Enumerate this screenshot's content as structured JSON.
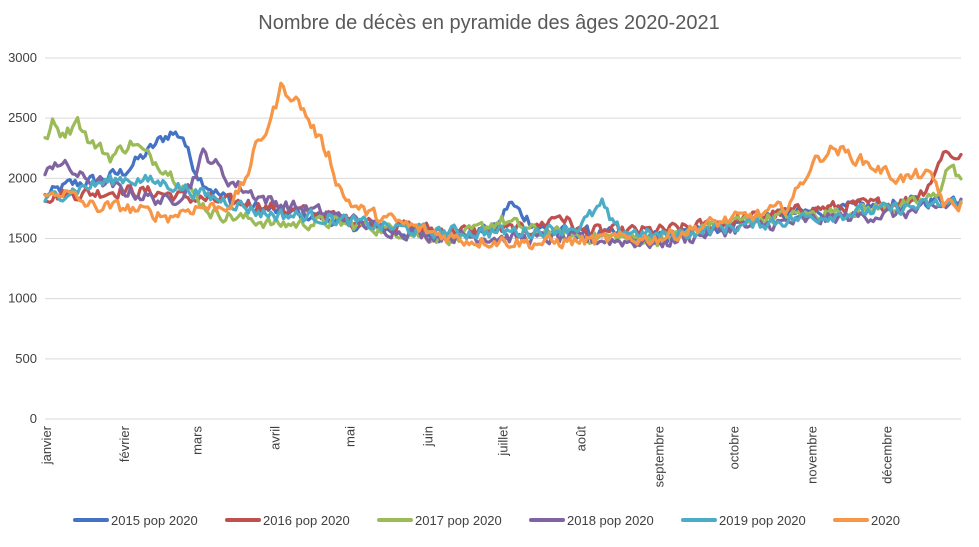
{
  "chart_data": {
    "type": "line",
    "title": "Nombre de décès en pyramide des âges 2020-2021",
    "xlabel": "",
    "ylabel": "",
    "ylim": [
      0,
      3000
    ],
    "yticks": [
      "0",
      "500",
      "1000",
      "1500",
      "2000",
      "2500",
      "3000"
    ],
    "ytick_values": [
      0,
      500,
      1000,
      1500,
      2000,
      2500,
      3000
    ],
    "days_total": 366,
    "months": [
      {
        "label": "janvier",
        "day": 0
      },
      {
        "label": "février",
        "day": 31
      },
      {
        "label": "mars",
        "day": 60
      },
      {
        "label": "avril",
        "day": 91
      },
      {
        "label": "mai",
        "day": 121
      },
      {
        "label": "juin",
        "day": 152
      },
      {
        "label": "juillet",
        "day": 182
      },
      {
        "label": "août",
        "day": 213
      },
      {
        "label": "septembre",
        "day": 244
      },
      {
        "label": "octobre",
        "day": 274
      },
      {
        "label": "novembre",
        "day": 305
      },
      {
        "label": "décembre",
        "day": 335
      }
    ],
    "legend_position": "bottom",
    "series": [
      {
        "name": "2015 pop 2020",
        "color": "#4472c4",
        "keypoints": [
          [
            0,
            1850
          ],
          [
            10,
            1950
          ],
          [
            20,
            1980
          ],
          [
            31,
            2050
          ],
          [
            40,
            2200
          ],
          [
            45,
            2300
          ],
          [
            50,
            2380
          ],
          [
            55,
            2350
          ],
          [
            58,
            2150
          ],
          [
            62,
            2000
          ],
          [
            70,
            1850
          ],
          [
            80,
            1780
          ],
          [
            91,
            1730
          ],
          [
            100,
            1700
          ],
          [
            110,
            1680
          ],
          [
            121,
            1620
          ],
          [
            135,
            1580
          ],
          [
            152,
            1530
          ],
          [
            160,
            1520
          ],
          [
            170,
            1550
          ],
          [
            180,
            1580
          ],
          [
            185,
            1800
          ],
          [
            190,
            1700
          ],
          [
            200,
            1560
          ],
          [
            213,
            1550
          ],
          [
            225,
            1530
          ],
          [
            244,
            1500
          ],
          [
            260,
            1560
          ],
          [
            274,
            1620
          ],
          [
            285,
            1670
          ],
          [
            295,
            1700
          ],
          [
            305,
            1720
          ],
          [
            315,
            1740
          ],
          [
            325,
            1760
          ],
          [
            335,
            1780
          ],
          [
            345,
            1800
          ],
          [
            355,
            1820
          ],
          [
            365,
            1830
          ]
        ]
      },
      {
        "name": "2016 pop 2020",
        "color": "#c0504d",
        "keypoints": [
          [
            0,
            1850
          ],
          [
            10,
            1870
          ],
          [
            20,
            1880
          ],
          [
            31,
            1900
          ],
          [
            45,
            1880
          ],
          [
            60,
            1830
          ],
          [
            75,
            1800
          ],
          [
            91,
            1760
          ],
          [
            110,
            1700
          ],
          [
            121,
            1660
          ],
          [
            135,
            1620
          ],
          [
            152,
            1580
          ],
          [
            170,
            1560
          ],
          [
            182,
            1570
          ],
          [
            195,
            1580
          ],
          [
            205,
            1700
          ],
          [
            213,
            1560
          ],
          [
            230,
            1560
          ],
          [
            244,
            1560
          ],
          [
            260,
            1600
          ],
          [
            274,
            1650
          ],
          [
            290,
            1700
          ],
          [
            305,
            1740
          ],
          [
            320,
            1770
          ],
          [
            335,
            1790
          ],
          [
            345,
            1820
          ],
          [
            350,
            1900
          ],
          [
            355,
            2050
          ],
          [
            358,
            2250
          ],
          [
            361,
            2180
          ],
          [
            365,
            2200
          ]
        ]
      },
      {
        "name": "2017 pop 2020",
        "color": "#9bbb59",
        "keypoints": [
          [
            0,
            2300
          ],
          [
            3,
            2450
          ],
          [
            6,
            2380
          ],
          [
            10,
            2400
          ],
          [
            12,
            2520
          ],
          [
            15,
            2420
          ],
          [
            18,
            2300
          ],
          [
            22,
            2250
          ],
          [
            26,
            2180
          ],
          [
            31,
            2250
          ],
          [
            35,
            2300
          ],
          [
            40,
            2200
          ],
          [
            48,
            2080
          ],
          [
            55,
            1950
          ],
          [
            60,
            1850
          ],
          [
            66,
            1720
          ],
          [
            75,
            1680
          ],
          [
            85,
            1650
          ],
          [
            91,
            1620
          ],
          [
            100,
            1620
          ],
          [
            110,
            1640
          ],
          [
            121,
            1620
          ],
          [
            135,
            1580
          ],
          [
            152,
            1520
          ],
          [
            165,
            1500
          ],
          [
            175,
            1600
          ],
          [
            182,
            1650
          ],
          [
            195,
            1560
          ],
          [
            213,
            1520
          ],
          [
            230,
            1510
          ],
          [
            244,
            1490
          ],
          [
            255,
            1550
          ],
          [
            265,
            1600
          ],
          [
            274,
            1640
          ],
          [
            290,
            1680
          ],
          [
            305,
            1700
          ],
          [
            320,
            1730
          ],
          [
            335,
            1760
          ],
          [
            345,
            1780
          ],
          [
            355,
            1850
          ],
          [
            360,
            2100
          ],
          [
            363,
            2050
          ],
          [
            365,
            2000
          ]
        ]
      },
      {
        "name": "2018 pop 2020",
        "color": "#8064a2",
        "keypoints": [
          [
            0,
            2000
          ],
          [
            4,
            2150
          ],
          [
            8,
            2100
          ],
          [
            15,
            2000
          ],
          [
            25,
            1950
          ],
          [
            31,
            1900
          ],
          [
            40,
            1850
          ],
          [
            50,
            1800
          ],
          [
            58,
            1950
          ],
          [
            63,
            2200
          ],
          [
            67,
            2150
          ],
          [
            72,
            2000
          ],
          [
            80,
            1900
          ],
          [
            91,
            1800
          ],
          [
            100,
            1760
          ],
          [
            110,
            1720
          ],
          [
            121,
            1660
          ],
          [
            135,
            1580
          ],
          [
            152,
            1530
          ],
          [
            170,
            1520
          ],
          [
            182,
            1510
          ],
          [
            195,
            1500
          ],
          [
            213,
            1500
          ],
          [
            230,
            1480
          ],
          [
            244,
            1460
          ],
          [
            255,
            1500
          ],
          [
            265,
            1550
          ],
          [
            274,
            1580
          ],
          [
            290,
            1620
          ],
          [
            305,
            1650
          ],
          [
            320,
            1680
          ],
          [
            335,
            1700
          ],
          [
            345,
            1720
          ],
          [
            355,
            1760
          ],
          [
            365,
            1800
          ]
        ]
      },
      {
        "name": "2019 pop 2020",
        "color": "#4bacc6",
        "keypoints": [
          [
            0,
            1820
          ],
          [
            10,
            1900
          ],
          [
            20,
            1950
          ],
          [
            31,
            2000
          ],
          [
            40,
            1980
          ],
          [
            50,
            1950
          ],
          [
            58,
            1900
          ],
          [
            65,
            1850
          ],
          [
            75,
            1800
          ],
          [
            85,
            1720
          ],
          [
            91,
            1700
          ],
          [
            100,
            1690
          ],
          [
            110,
            1680
          ],
          [
            121,
            1640
          ],
          [
            135,
            1600
          ],
          [
            152,
            1560
          ],
          [
            170,
            1550
          ],
          [
            182,
            1560
          ],
          [
            195,
            1560
          ],
          [
            205,
            1580
          ],
          [
            213,
            1600
          ],
          [
            222,
            1780
          ],
          [
            227,
            1580
          ],
          [
            244,
            1520
          ],
          [
            260,
            1560
          ],
          [
            274,
            1600
          ],
          [
            290,
            1640
          ],
          [
            305,
            1680
          ],
          [
            320,
            1710
          ],
          [
            335,
            1740
          ],
          [
            345,
            1760
          ],
          [
            355,
            1780
          ],
          [
            365,
            1800
          ]
        ]
      },
      {
        "name": "2020",
        "color": "#f79646",
        "keypoints": [
          [
            0,
            1830
          ],
          [
            5,
            1900
          ],
          [
            10,
            1860
          ],
          [
            15,
            1800
          ],
          [
            20,
            1760
          ],
          [
            31,
            1760
          ],
          [
            40,
            1720
          ],
          [
            45,
            1700
          ],
          [
            50,
            1680
          ],
          [
            55,
            1730
          ],
          [
            60,
            1760
          ],
          [
            70,
            1760
          ],
          [
            75,
            1800
          ],
          [
            80,
            2000
          ],
          [
            84,
            2250
          ],
          [
            88,
            2400
          ],
          [
            91,
            2550
          ],
          [
            94,
            2750
          ],
          [
            98,
            2700
          ],
          [
            102,
            2600
          ],
          [
            106,
            2450
          ],
          [
            110,
            2300
          ],
          [
            113,
            2200
          ],
          [
            116,
            2000
          ],
          [
            119,
            1850
          ],
          [
            124,
            1760
          ],
          [
            130,
            1700
          ],
          [
            140,
            1640
          ],
          [
            152,
            1560
          ],
          [
            160,
            1520
          ],
          [
            170,
            1480
          ],
          [
            182,
            1480
          ],
          [
            195,
            1460
          ],
          [
            213,
            1480
          ],
          [
            230,
            1500
          ],
          [
            244,
            1500
          ],
          [
            255,
            1560
          ],
          [
            265,
            1620
          ],
          [
            274,
            1660
          ],
          [
            285,
            1700
          ],
          [
            295,
            1760
          ],
          [
            300,
            1900
          ],
          [
            305,
            2100
          ],
          [
            310,
            2200
          ],
          [
            315,
            2250
          ],
          [
            320,
            2200
          ],
          [
            325,
            2150
          ],
          [
            330,
            2100
          ],
          [
            335,
            2050
          ],
          [
            340,
            2000
          ],
          [
            345,
            2000
          ],
          [
            350,
            2050
          ],
          [
            355,
            1950
          ],
          [
            358,
            1800
          ],
          [
            362,
            1760
          ],
          [
            365,
            1780
          ]
        ]
      }
    ]
  }
}
